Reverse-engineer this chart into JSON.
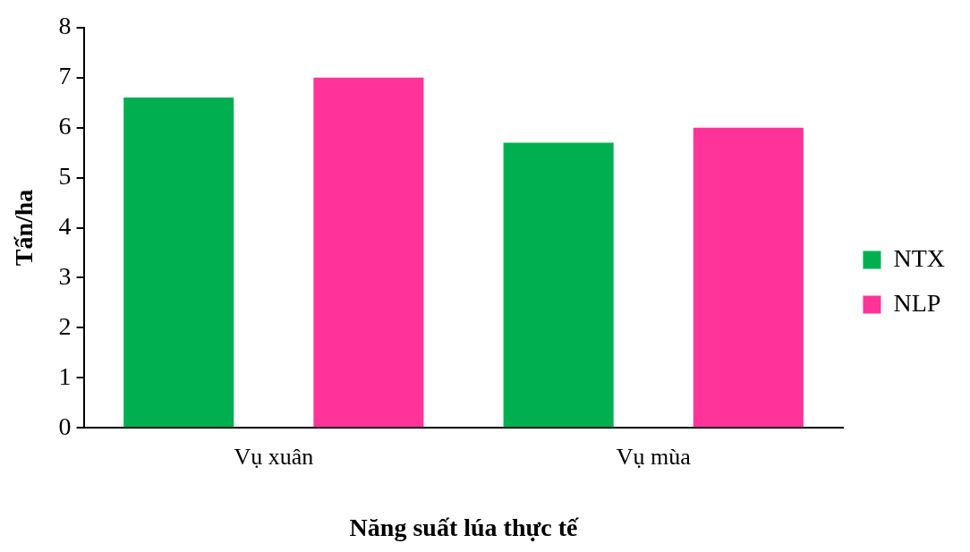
{
  "chart_data": {
    "type": "bar",
    "xlabel": "Năng suất lúa thực tế",
    "ylabel": "Tấn/ha",
    "categories": [
      "Vụ xuân",
      "Vụ mùa"
    ],
    "series": [
      {
        "name": "NTX",
        "color": "#00b050",
        "values": [
          6.6,
          5.7
        ]
      },
      {
        "name": "NLP",
        "color": "#ff3399",
        "values": [
          7.0,
          6.0
        ]
      }
    ],
    "ylim": [
      0,
      8
    ],
    "yticks": [
      0,
      1,
      2,
      3,
      4,
      5,
      6,
      7,
      8
    ],
    "grid": false,
    "legend": "right"
  }
}
